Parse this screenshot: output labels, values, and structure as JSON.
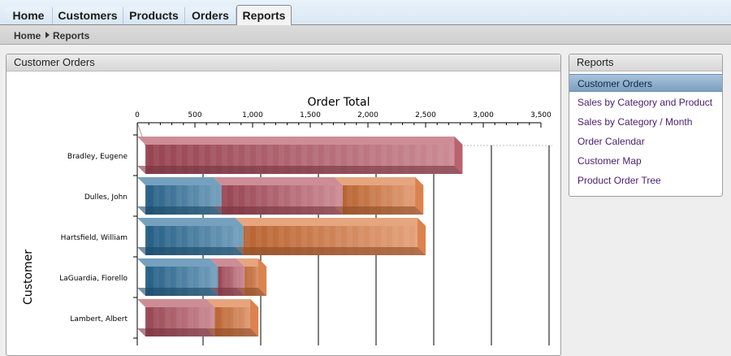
{
  "tabs": [
    {
      "label": "Home",
      "active": false
    },
    {
      "label": "Customers",
      "active": false
    },
    {
      "label": "Products",
      "active": false
    },
    {
      "label": "Orders",
      "active": false
    },
    {
      "label": "Reports",
      "active": true
    }
  ],
  "breadcrumb": {
    "home": "Home",
    "current": "Reports"
  },
  "main_panel": {
    "title": "Customer Orders"
  },
  "reports_panel": {
    "title": "Reports",
    "links": [
      {
        "label": "Customer Orders",
        "selected": true
      },
      {
        "label": "Sales by Category and Product",
        "selected": false
      },
      {
        "label": "Sales by Category / Month",
        "selected": false
      },
      {
        "label": "Order Calendar",
        "selected": false
      },
      {
        "label": "Customer Map",
        "selected": false
      },
      {
        "label": "Product Order Tree",
        "selected": false
      }
    ]
  },
  "chart_data": {
    "type": "bar",
    "orientation": "horizontal",
    "stacked": true,
    "title": "Order Total",
    "ylabel": "Customer",
    "xlim": [
      0,
      3500
    ],
    "ticks": [
      0,
      500,
      1000,
      1500,
      2000,
      2500,
      3000,
      3500
    ],
    "tick_labels": [
      "0",
      "500",
      "1,000",
      "1,500",
      "2,000",
      "2,500",
      "3,000",
      "3,500"
    ],
    "categories": [
      "Bradley, Eugene",
      "Dulles, John",
      "Hartsfield, William",
      "LaGuardia, Fiorello",
      "Lambert, Albert"
    ],
    "colors": {
      "blue": "#2a6f9b",
      "red": "#b2505f",
      "orange": "#d8743a"
    },
    "series": [
      {
        "color_key": "blue",
        "values": [
          0,
          660,
          850,
          630,
          0
        ]
      },
      {
        "color_key": "red",
        "values": [
          2750,
          1050,
          0,
          230,
          600
        ]
      },
      {
        "color_key": "orange",
        "values": [
          0,
          700,
          1580,
          190,
          380
        ]
      }
    ]
  }
}
